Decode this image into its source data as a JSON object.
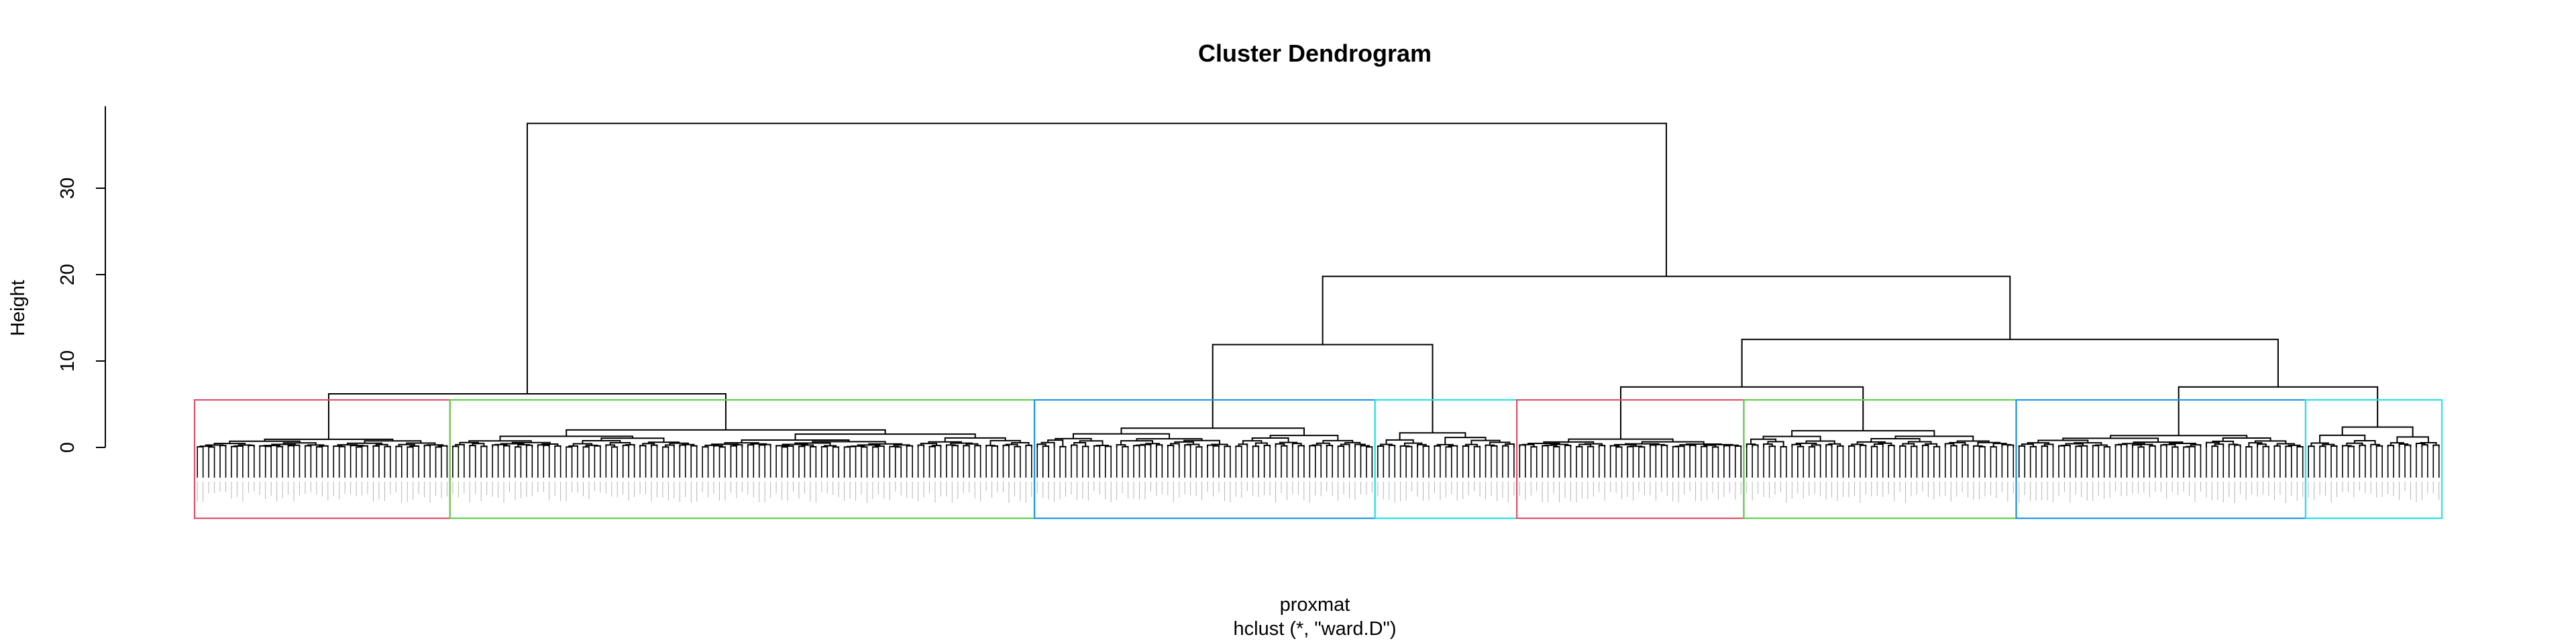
{
  "chart_data": {
    "type": "dendrogram",
    "title": "Cluster Dendrogram",
    "ylabel": "Height",
    "xlabel": "proxmat",
    "sub": "hclust (*, \"ward.D\")",
    "ylim": [
      0,
      38
    ],
    "yticks": [
      0,
      10,
      20,
      30
    ],
    "root_height": 37.5,
    "merges": [
      {
        "id": "root",
        "height": 37.5,
        "children": [
          "A",
          "B"
        ]
      },
      {
        "id": "A",
        "height": 6.2,
        "children": [
          "A1",
          "A2"
        ]
      },
      {
        "id": "B",
        "height": 19.8,
        "children": [
          "B1",
          "B2"
        ]
      },
      {
        "id": "B1",
        "height": 11.9,
        "children": [
          "B1a",
          "B1b"
        ]
      },
      {
        "id": "B2",
        "height": 12.5,
        "children": [
          "B2a",
          "B2b"
        ]
      },
      {
        "id": "B2a",
        "height": 7.0,
        "children": [
          "B2a1",
          "B2a2"
        ]
      },
      {
        "id": "B2b",
        "height": 7.0,
        "children": [
          "B2b1",
          "B2b2"
        ]
      },
      {
        "id": "A2",
        "height": 2.5,
        "children": [
          "A2a",
          "A2b"
        ]
      },
      {
        "id": "B1a",
        "height": 3.8,
        "children": [
          "B1a1",
          "B1a2"
        ]
      },
      {
        "id": "B1b",
        "height": 4.7,
        "children": [
          "B1b1",
          "B1b2"
        ]
      },
      {
        "id": "B2a1",
        "height": 1.2,
        "children": []
      },
      {
        "id": "B2a2",
        "height": 2.4,
        "children": []
      },
      {
        "id": "B2b1",
        "height": 1.8,
        "children": []
      },
      {
        "id": "B2b2",
        "height": 3.4,
        "children": []
      }
    ],
    "clusters": [
      {
        "color": "#DF536B",
        "leaves": 45
      },
      {
        "color": "#61D04F",
        "leaves": 103
      },
      {
        "color": "#2297E6",
        "leaves": 60
      },
      {
        "color": "#28E2E5",
        "leaves": 25
      },
      {
        "color": "#DF536B",
        "leaves": 40
      },
      {
        "color": "#61D04F",
        "leaves": 48
      },
      {
        "color": "#2297E6",
        "leaves": 51
      },
      {
        "color": "#28E2E5",
        "leaves": 24
      }
    ],
    "rect_top": 5.5,
    "rect_bottom": -8.2,
    "leaf_bottom": -3.5,
    "grid": false,
    "legend": "none"
  }
}
